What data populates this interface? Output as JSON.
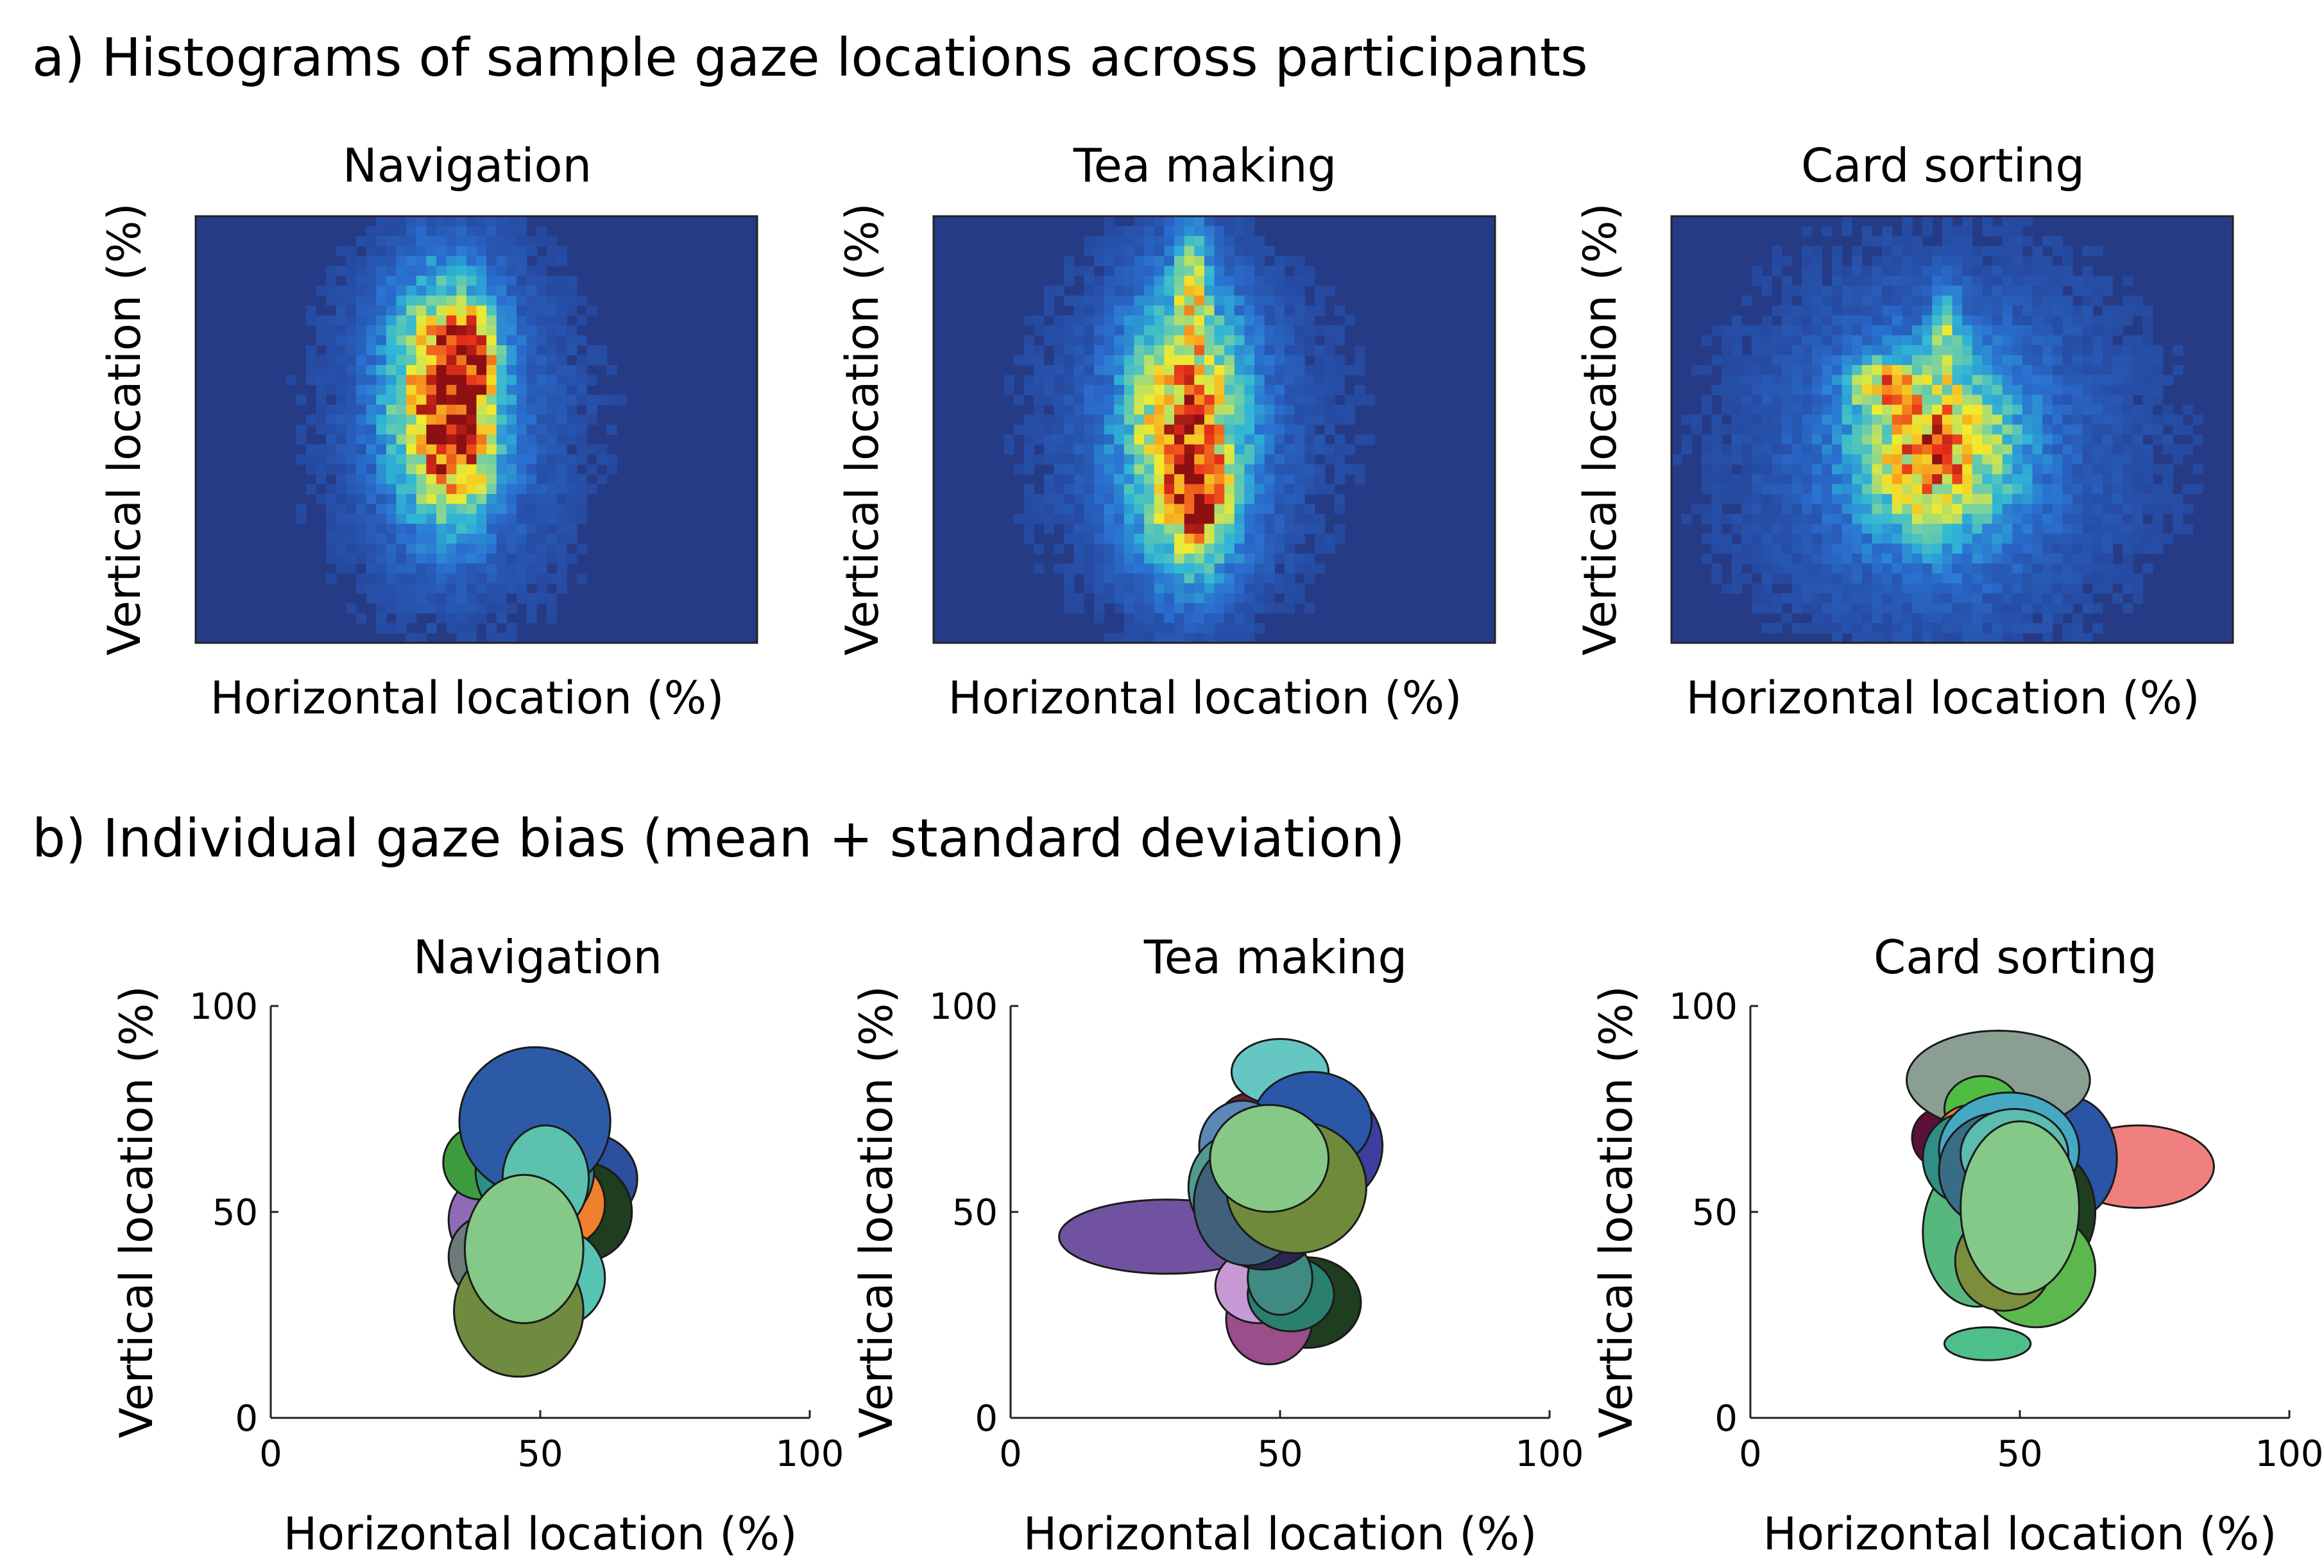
{
  "figure": {
    "section_a_title": "a) Histograms of sample gaze locations across participants",
    "section_b_title": "b) Individual gaze bias (mean + standard deviation)"
  },
  "chart_data": [
    {
      "type": "heatmap",
      "panel": "a",
      "title": "Navigation",
      "xlabel": "Horizontal location (%)",
      "ylabel": "Vertical location (%)",
      "xticks": [],
      "yticks": [],
      "grid": {
        "cols": 56,
        "rows": 43
      },
      "colormap": [
        "#243a8c",
        "#2a6fd0",
        "#2fb6d6",
        "#7fd49a",
        "#f2ec2e",
        "#f7a11e",
        "#e8311b",
        "#8c0f12"
      ],
      "background": "#263b86",
      "density": {
        "sources": [
          {
            "x": 44,
            "y": 42,
            "sx": 6,
            "sy": 17,
            "w": 0.75
          },
          {
            "x": 49,
            "y": 32,
            "sx": 3,
            "sy": 7,
            "w": 0.5
          },
          {
            "x": 47,
            "y": 55,
            "sx": 4,
            "sy": 10,
            "w": 0.35
          },
          {
            "x": 46,
            "y": 48,
            "sx": 18,
            "sy": 35,
            "w": 0.12
          }
        ],
        "seed": 11
      }
    },
    {
      "type": "heatmap",
      "panel": "a",
      "title": "Tea making",
      "xlabel": "Horizontal location (%)",
      "ylabel": "Vertical location (%)",
      "xticks": [],
      "yticks": [],
      "grid": {
        "cols": 56,
        "rows": 43
      },
      "colormap": [
        "#243a8c",
        "#2a6fd0",
        "#2fb6d6",
        "#7fd49a",
        "#f2ec2e",
        "#f7a11e",
        "#e8311b",
        "#8c0f12"
      ],
      "background": "#263b86",
      "density": {
        "sources": [
          {
            "x": 45,
            "y": 50,
            "sx": 7,
            "sy": 20,
            "w": 0.7
          },
          {
            "x": 47,
            "y": 68,
            "sx": 3,
            "sy": 8,
            "w": 0.55
          },
          {
            "x": 46,
            "y": 16,
            "sx": 2,
            "sy": 10,
            "w": 0.35
          },
          {
            "x": 45,
            "y": 50,
            "sx": 22,
            "sy": 35,
            "w": 0.1
          }
        ],
        "seed": 23
      }
    },
    {
      "type": "heatmap",
      "panel": "a",
      "title": "Card sorting",
      "xlabel": "Horizontal location (%)",
      "ylabel": "Vertical location (%)",
      "xticks": [],
      "yticks": [],
      "grid": {
        "cols": 56,
        "rows": 43
      },
      "colormap": [
        "#243a8c",
        "#2a6fd0",
        "#2fb6d6",
        "#7fd49a",
        "#f2ec2e",
        "#f7a11e",
        "#e8311b",
        "#8c0f12"
      ],
      "background": "#263b86",
      "density": {
        "sources": [
          {
            "x": 47,
            "y": 55,
            "sx": 9,
            "sy": 13,
            "w": 0.65
          },
          {
            "x": 38,
            "y": 40,
            "sx": 4,
            "sy": 4,
            "w": 0.45
          },
          {
            "x": 49,
            "y": 28,
            "sx": 2,
            "sy": 7,
            "w": 0.3
          },
          {
            "x": 48,
            "y": 55,
            "sx": 28,
            "sy": 35,
            "w": 0.13
          }
        ],
        "seed": 37
      }
    },
    {
      "type": "ellipses",
      "panel": "b",
      "title": "Navigation",
      "xlabel": "Horizontal location (%)",
      "ylabel": "Vertical location (%)",
      "xlim": [
        0,
        100
      ],
      "ylim": [
        0,
        100
      ],
      "xticks": [
        "0",
        "50",
        "100"
      ],
      "yticks": [
        "0",
        "50",
        "100"
      ],
      "ellipses": [
        {
          "cx": 39,
          "cy": 48,
          "rx": 6,
          "ry": 10,
          "color": "#8f6bb5"
        },
        {
          "cx": 39,
          "cy": 62,
          "rx": 7,
          "ry": 9,
          "color": "#3e9b3e"
        },
        {
          "cx": 46,
          "cy": 67,
          "rx": 8,
          "ry": 10,
          "color": "#2f7a4f"
        },
        {
          "cx": 59,
          "cy": 58,
          "rx": 9,
          "ry": 11,
          "color": "#2c4f9e"
        },
        {
          "cx": 58,
          "cy": 50,
          "rx": 9,
          "ry": 12,
          "color": "#1f3d1f"
        },
        {
          "cx": 55,
          "cy": 52,
          "rx": 7,
          "ry": 10,
          "color": "#f07f2e"
        },
        {
          "cx": 40,
          "cy": 39,
          "rx": 7,
          "ry": 10,
          "color": "#6c7a7a"
        },
        {
          "cx": 40,
          "cy": 30,
          "rx": 5,
          "ry": 6,
          "color": "#4fb97e"
        },
        {
          "cx": 53,
          "cy": 34,
          "rx": 9,
          "ry": 12,
          "color": "#57c4b3"
        },
        {
          "cx": 49,
          "cy": 60,
          "rx": 11,
          "ry": 14,
          "color": "#2e8f86"
        },
        {
          "cx": 49,
          "cy": 72,
          "rx": 14,
          "ry": 18,
          "color": "#2d5aa6"
        },
        {
          "cx": 51,
          "cy": 58,
          "rx": 8,
          "ry": 13,
          "color": "#5cc2ad"
        },
        {
          "cx": 46,
          "cy": 26,
          "rx": 12,
          "ry": 16,
          "color": "#6f8b3f"
        },
        {
          "cx": 47,
          "cy": 41,
          "rx": 11,
          "ry": 18,
          "color": "#84c987"
        }
      ]
    },
    {
      "type": "ellipses",
      "panel": "b",
      "title": "Tea making",
      "xlabel": "Horizontal location (%)",
      "ylabel": "Vertical location (%)",
      "xlim": [
        0,
        100
      ],
      "ylim": [
        0,
        100
      ],
      "xticks": [
        "0",
        "50",
        "100"
      ],
      "yticks": [
        "0",
        "50",
        "100"
      ],
      "ellipses": [
        {
          "cx": 29,
          "cy": 44,
          "rx": 20,
          "ry": 9,
          "color": "#7152a0"
        },
        {
          "cx": 45,
          "cy": 70,
          "rx": 7,
          "ry": 9,
          "color": "#6e1c3a"
        },
        {
          "cx": 55,
          "cy": 28,
          "rx": 10,
          "ry": 11,
          "color": "#1f3d1f"
        },
        {
          "cx": 48,
          "cy": 24,
          "rx": 8,
          "ry": 11,
          "color": "#9a4f8a"
        },
        {
          "cx": 46,
          "cy": 32,
          "rx": 8,
          "ry": 9,
          "color": "#c79ad6"
        },
        {
          "cx": 52,
          "cy": 30,
          "rx": 8,
          "ry": 9,
          "color": "#2a7f6f"
        },
        {
          "cx": 50,
          "cy": 34,
          "rx": 6,
          "ry": 9,
          "color": "#3f8a82"
        },
        {
          "cx": 47,
          "cy": 50,
          "rx": 11,
          "ry": 14,
          "color": "#2b2650"
        },
        {
          "cx": 50,
          "cy": 84,
          "rx": 9,
          "ry": 8,
          "color": "#66c7c2"
        },
        {
          "cx": 57,
          "cy": 66,
          "rx": 12,
          "ry": 15,
          "color": "#3d3f9e"
        },
        {
          "cx": 56,
          "cy": 72,
          "rx": 11,
          "ry": 12,
          "color": "#2a57a8"
        },
        {
          "cx": 43,
          "cy": 66,
          "rx": 8,
          "ry": 11,
          "color": "#5b88b6"
        },
        {
          "cx": 42,
          "cy": 56,
          "rx": 9,
          "ry": 13,
          "color": "#4f9c8f"
        },
        {
          "cx": 44,
          "cy": 52,
          "rx": 10,
          "ry": 15,
          "color": "#41607a"
        },
        {
          "cx": 53,
          "cy": 56,
          "rx": 13,
          "ry": 16,
          "color": "#6f8a3a"
        },
        {
          "cx": 48,
          "cy": 63,
          "rx": 11,
          "ry": 13,
          "color": "#86c987"
        }
      ]
    },
    {
      "type": "ellipses",
      "panel": "b",
      "title": "Card sorting",
      "xlabel": "Horizontal location (%)",
      "ylabel": "Vertical location (%)",
      "xlim": [
        0,
        100
      ],
      "ylim": [
        0,
        100
      ],
      "xticks": [
        "0",
        "50",
        "100"
      ],
      "yticks": [
        "0",
        "50",
        "100"
      ],
      "ellipses": [
        {
          "cx": 72,
          "cy": 61,
          "rx": 14,
          "ry": 10,
          "color": "#f08080"
        },
        {
          "cx": 35,
          "cy": 68,
          "rx": 5,
          "ry": 7,
          "color": "#5a1038"
        },
        {
          "cx": 59,
          "cy": 63,
          "rx": 9,
          "ry": 15,
          "color": "#2a54a4"
        },
        {
          "cx": 55,
          "cy": 50,
          "rx": 9,
          "ry": 15,
          "color": "#1f3d1f"
        },
        {
          "cx": 53,
          "cy": 36,
          "rx": 11,
          "ry": 14,
          "color": "#5ab84c"
        },
        {
          "cx": 44,
          "cy": 18,
          "rx": 8,
          "ry": 4,
          "color": "#4fbf8a"
        },
        {
          "cx": 42,
          "cy": 45,
          "rx": 10,
          "ry": 18,
          "color": "#57b87f"
        },
        {
          "cx": 46,
          "cy": 82,
          "rx": 17,
          "ry": 12,
          "color": "#8a9e92"
        },
        {
          "cx": 43,
          "cy": 75,
          "rx": 7,
          "ry": 8,
          "color": "#4ebd42"
        },
        {
          "cx": 41,
          "cy": 67,
          "rx": 7,
          "ry": 9,
          "color": "#f07f2e"
        },
        {
          "cx": 40,
          "cy": 63,
          "rx": 8,
          "ry": 11,
          "color": "#2f8e85"
        },
        {
          "cx": 48,
          "cy": 65,
          "rx": 13,
          "ry": 14,
          "color": "#45a9c4"
        },
        {
          "cx": 46,
          "cy": 60,
          "rx": 11,
          "ry": 14,
          "color": "#386d86"
        },
        {
          "cx": 49,
          "cy": 64,
          "rx": 10,
          "ry": 11,
          "color": "#5cbcb0"
        },
        {
          "cx": 47,
          "cy": 38,
          "rx": 9,
          "ry": 12,
          "color": "#7b8e3c"
        },
        {
          "cx": 50,
          "cy": 51,
          "rx": 11,
          "ry": 21,
          "color": "#84c987"
        }
      ]
    }
  ]
}
